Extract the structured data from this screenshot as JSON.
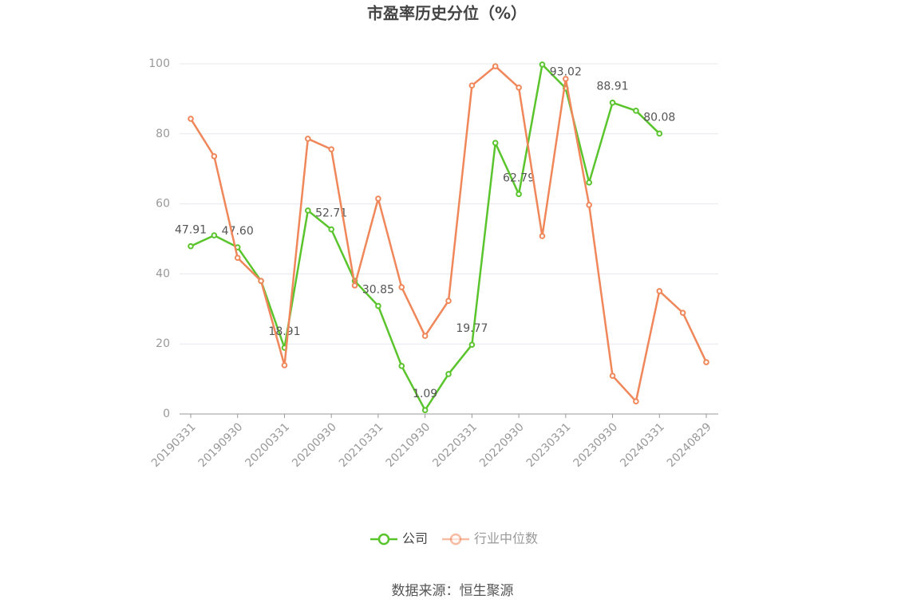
{
  "chart_data": {
    "type": "line",
    "title": "市盈率历史分位（%）",
    "source": "数据来源：恒生聚源",
    "categories": [
      "20190331",
      null,
      "20190930",
      null,
      "20200331",
      null,
      "20200930",
      null,
      "20210331",
      null,
      "20210930",
      null,
      "20220331",
      null,
      "20220930",
      null,
      "20230331",
      null,
      "20230930",
      null,
      "20240331",
      null,
      "20240829"
    ],
    "series": [
      {
        "name": "公司",
        "color": "#5ac42d",
        "values": [
          47.91,
          51.0,
          47.6,
          38.0,
          18.91,
          58.1,
          52.71,
          38.0,
          30.85,
          13.7,
          1.09,
          11.4,
          19.77,
          77.4,
          62.79,
          99.8,
          93.02,
          66.1,
          88.91,
          86.6,
          80.08,
          null,
          null
        ],
        "value_labels": [
          "47.91",
          null,
          "47.60",
          null,
          "18.91",
          null,
          "52.71",
          null,
          "30.85",
          null,
          "1.09",
          null,
          "19.77",
          null,
          "62.79",
          null,
          "93.02",
          null,
          "88.91",
          null,
          "80.08",
          null,
          null
        ]
      },
      {
        "name": "行业中位数",
        "color": "#f0875a",
        "values": [
          84.3,
          73.6,
          44.6,
          38.0,
          13.9,
          78.6,
          75.6,
          36.7,
          61.5,
          36.2,
          22.3,
          32.3,
          93.8,
          99.3,
          93.2,
          50.8,
          95.7,
          59.7,
          10.9,
          3.6,
          35.1,
          28.9,
          14.8
        ]
      }
    ],
    "ylim": [
      0,
      100
    ],
    "yticks": [
      0,
      20,
      40,
      60,
      80,
      100
    ],
    "grid": true,
    "legend": "bottom"
  }
}
